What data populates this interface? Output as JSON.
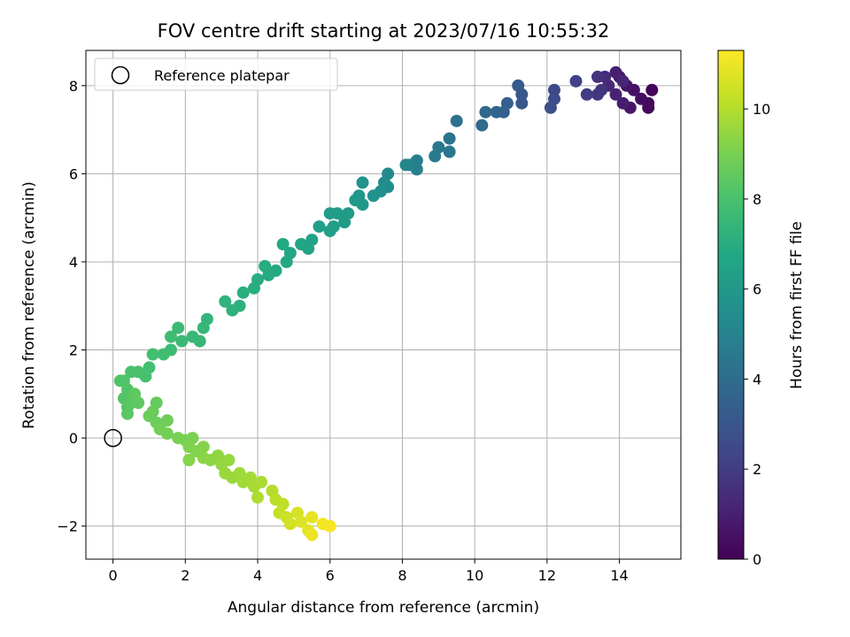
{
  "chart_data": {
    "type": "scatter",
    "title": "FOV centre drift starting at 2023/07/16 10:55:32",
    "xlabel": "Angular distance from reference (arcmin)",
    "ylabel": "Rotation from reference (arcmin)",
    "xlim": [
      -0.75,
      15.7
    ],
    "ylim": [
      -2.75,
      8.8
    ],
    "xticks": [
      0,
      2,
      4,
      6,
      8,
      10,
      12,
      14
    ],
    "yticks": [
      -2,
      0,
      2,
      4,
      6,
      8
    ],
    "xtick_labels": [
      "0",
      "2",
      "4",
      "6",
      "8",
      "10",
      "12",
      "14"
    ],
    "ytick_labels": [
      "−2",
      "0",
      "2",
      "4",
      "6",
      "8"
    ],
    "grid": true,
    "legend": {
      "placement": "top-left",
      "entries": [
        {
          "label": "Reference platepar",
          "marker": "open-circle"
        }
      ]
    },
    "reference_point": {
      "x": 0,
      "y": 0
    },
    "colorbar": {
      "label": "Hours from first FF file",
      "colormap": "viridis",
      "range": [
        0,
        11.3
      ],
      "ticks": [
        0,
        2,
        4,
        6,
        8,
        10
      ],
      "tick_labels": [
        "0",
        "2",
        "4",
        "6",
        "8",
        "10"
      ]
    },
    "series": [
      {
        "points": [
          {
            "x": 14.9,
            "y": 7.9,
            "t": 0.1
          },
          {
            "x": 14.8,
            "y": 7.5,
            "t": 0.2
          },
          {
            "x": 14.8,
            "y": 7.6,
            "t": 0.3
          },
          {
            "x": 14.6,
            "y": 7.7,
            "t": 0.4
          },
          {
            "x": 14.4,
            "y": 7.9,
            "t": 0.5
          },
          {
            "x": 14.2,
            "y": 8.0,
            "t": 0.6
          },
          {
            "x": 14.3,
            "y": 7.5,
            "t": 0.7
          },
          {
            "x": 14.0,
            "y": 8.2,
            "t": 0.8
          },
          {
            "x": 14.1,
            "y": 7.6,
            "t": 0.9
          },
          {
            "x": 13.9,
            "y": 8.3,
            "t": 1.0
          },
          {
            "x": 13.9,
            "y": 7.8,
            "t": 1.1
          },
          {
            "x": 14.1,
            "y": 8.1,
            "t": 1.2
          },
          {
            "x": 13.7,
            "y": 8.0,
            "t": 1.3
          },
          {
            "x": 13.6,
            "y": 8.2,
            "t": 1.4
          },
          {
            "x": 13.4,
            "y": 8.2,
            "t": 1.6
          },
          {
            "x": 13.5,
            "y": 7.9,
            "t": 1.7
          },
          {
            "x": 13.4,
            "y": 7.8,
            "t": 1.8
          },
          {
            "x": 13.1,
            "y": 7.8,
            "t": 2.0
          },
          {
            "x": 12.8,
            "y": 8.1,
            "t": 2.2
          },
          {
            "x": 12.2,
            "y": 7.9,
            "t": 2.5
          },
          {
            "x": 12.2,
            "y": 7.7,
            "t": 2.6
          },
          {
            "x": 12.1,
            "y": 7.5,
            "t": 2.7
          },
          {
            "x": 11.3,
            "y": 7.8,
            "t": 3.0
          },
          {
            "x": 11.3,
            "y": 7.6,
            "t": 3.1
          },
          {
            "x": 11.2,
            "y": 8.0,
            "t": 3.2
          },
          {
            "x": 10.9,
            "y": 7.6,
            "t": 3.4
          },
          {
            "x": 10.8,
            "y": 7.4,
            "t": 3.5
          },
          {
            "x": 10.6,
            "y": 7.4,
            "t": 3.6
          },
          {
            "x": 10.3,
            "y": 7.4,
            "t": 3.8
          },
          {
            "x": 10.2,
            "y": 7.1,
            "t": 3.9
          },
          {
            "x": 9.5,
            "y": 7.2,
            "t": 4.2
          },
          {
            "x": 9.3,
            "y": 6.8,
            "t": 4.3
          },
          {
            "x": 9.3,
            "y": 6.5,
            "t": 4.4
          },
          {
            "x": 9.0,
            "y": 6.6,
            "t": 4.5
          },
          {
            "x": 8.9,
            "y": 6.4,
            "t": 4.6
          },
          {
            "x": 8.4,
            "y": 6.3,
            "t": 4.8
          },
          {
            "x": 8.4,
            "y": 6.1,
            "t": 4.9
          },
          {
            "x": 8.2,
            "y": 6.2,
            "t": 5.0
          },
          {
            "x": 8.1,
            "y": 6.2,
            "t": 5.1
          },
          {
            "x": 7.6,
            "y": 6.0,
            "t": 5.3
          },
          {
            "x": 7.5,
            "y": 5.8,
            "t": 5.4
          },
          {
            "x": 7.6,
            "y": 5.7,
            "t": 5.5
          },
          {
            "x": 7.4,
            "y": 5.6,
            "t": 5.6
          },
          {
            "x": 7.2,
            "y": 5.5,
            "t": 5.7
          },
          {
            "x": 6.9,
            "y": 5.8,
            "t": 5.8
          },
          {
            "x": 6.8,
            "y": 5.5,
            "t": 5.9
          },
          {
            "x": 6.9,
            "y": 5.3,
            "t": 6.0
          },
          {
            "x": 6.7,
            "y": 5.4,
            "t": 6.05
          },
          {
            "x": 6.5,
            "y": 5.1,
            "t": 6.1
          },
          {
            "x": 6.4,
            "y": 4.9,
            "t": 6.15
          },
          {
            "x": 6.2,
            "y": 5.1,
            "t": 6.2
          },
          {
            "x": 6.0,
            "y": 5.1,
            "t": 6.25
          },
          {
            "x": 6.1,
            "y": 4.8,
            "t": 6.3
          },
          {
            "x": 6.0,
            "y": 4.7,
            "t": 6.35
          },
          {
            "x": 5.7,
            "y": 4.8,
            "t": 6.4
          },
          {
            "x": 5.5,
            "y": 4.5,
            "t": 6.5
          },
          {
            "x": 5.4,
            "y": 4.3,
            "t": 6.55
          },
          {
            "x": 5.2,
            "y": 4.4,
            "t": 6.6
          },
          {
            "x": 4.9,
            "y": 4.2,
            "t": 6.7
          },
          {
            "x": 4.8,
            "y": 4.0,
            "t": 6.75
          },
          {
            "x": 4.7,
            "y": 4.4,
            "t": 6.8
          },
          {
            "x": 4.5,
            "y": 3.8,
            "t": 6.85
          },
          {
            "x": 4.3,
            "y": 3.7,
            "t": 6.9
          },
          {
            "x": 4.2,
            "y": 3.9,
            "t": 6.95
          },
          {
            "x": 4.0,
            "y": 3.6,
            "t": 7.0
          },
          {
            "x": 3.9,
            "y": 3.4,
            "t": 7.05
          },
          {
            "x": 3.6,
            "y": 3.3,
            "t": 7.1
          },
          {
            "x": 3.5,
            "y": 3.0,
            "t": 7.15
          },
          {
            "x": 3.3,
            "y": 2.9,
            "t": 7.2
          },
          {
            "x": 3.1,
            "y": 3.1,
            "t": 7.25
          },
          {
            "x": 2.6,
            "y": 2.7,
            "t": 7.4
          },
          {
            "x": 2.5,
            "y": 2.5,
            "t": 7.45
          },
          {
            "x": 2.4,
            "y": 2.2,
            "t": 7.5
          },
          {
            "x": 2.2,
            "y": 2.3,
            "t": 7.55
          },
          {
            "x": 1.9,
            "y": 2.2,
            "t": 7.6
          },
          {
            "x": 1.8,
            "y": 2.5,
            "t": 7.65
          },
          {
            "x": 1.6,
            "y": 2.0,
            "t": 7.7
          },
          {
            "x": 1.6,
            "y": 2.3,
            "t": 7.75
          },
          {
            "x": 1.4,
            "y": 1.9,
            "t": 7.8
          },
          {
            "x": 1.1,
            "y": 1.9,
            "t": 7.85
          },
          {
            "x": 1.0,
            "y": 1.6,
            "t": 7.9
          },
          {
            "x": 0.9,
            "y": 1.4,
            "t": 7.95
          },
          {
            "x": 0.7,
            "y": 1.5,
            "t": 8.0
          },
          {
            "x": 0.5,
            "y": 1.5,
            "t": 8.05
          },
          {
            "x": 0.3,
            "y": 1.3,
            "t": 8.1
          },
          {
            "x": 0.2,
            "y": 1.3,
            "t": 8.15
          },
          {
            "x": 0.4,
            "y": 1.1,
            "t": 8.2
          },
          {
            "x": 0.3,
            "y": 0.9,
            "t": 8.25
          },
          {
            "x": 0.4,
            "y": 0.7,
            "t": 8.3
          },
          {
            "x": 0.5,
            "y": 0.8,
            "t": 8.35
          },
          {
            "x": 0.4,
            "y": 0.55,
            "t": 8.4
          },
          {
            "x": 0.6,
            "y": 1.0,
            "t": 8.45
          },
          {
            "x": 0.7,
            "y": 0.8,
            "t": 8.5
          },
          {
            "x": 1.2,
            "y": 0.8,
            "t": 8.6
          },
          {
            "x": 1.1,
            "y": 0.6,
            "t": 8.65
          },
          {
            "x": 1.0,
            "y": 0.5,
            "t": 8.7
          },
          {
            "x": 1.2,
            "y": 0.35,
            "t": 8.75
          },
          {
            "x": 1.5,
            "y": 0.4,
            "t": 8.8
          },
          {
            "x": 1.3,
            "y": 0.2,
            "t": 8.85
          },
          {
            "x": 1.5,
            "y": 0.1,
            "t": 8.9
          },
          {
            "x": 1.8,
            "y": 0.0,
            "t": 8.95
          },
          {
            "x": 2.0,
            "y": -0.05,
            "t": 9.0
          },
          {
            "x": 2.2,
            "y": 0.0,
            "t": 9.05
          },
          {
            "x": 2.1,
            "y": -0.2,
            "t": 9.1
          },
          {
            "x": 2.3,
            "y": -0.3,
            "t": 9.15
          },
          {
            "x": 2.5,
            "y": -0.2,
            "t": 9.2
          },
          {
            "x": 2.1,
            "y": -0.5,
            "t": 9.25
          },
          {
            "x": 2.5,
            "y": -0.45,
            "t": 9.3
          },
          {
            "x": 2.7,
            "y": -0.5,
            "t": 9.35
          },
          {
            "x": 2.9,
            "y": -0.4,
            "t": 9.4
          },
          {
            "x": 3.0,
            "y": -0.6,
            "t": 9.45
          },
          {
            "x": 3.2,
            "y": -0.5,
            "t": 9.5
          },
          {
            "x": 3.1,
            "y": -0.8,
            "t": 9.55
          },
          {
            "x": 3.3,
            "y": -0.9,
            "t": 9.6
          },
          {
            "x": 3.5,
            "y": -0.8,
            "t": 9.65
          },
          {
            "x": 3.6,
            "y": -1.0,
            "t": 9.7
          },
          {
            "x": 3.8,
            "y": -0.9,
            "t": 9.75
          },
          {
            "x": 3.9,
            "y": -1.1,
            "t": 9.8
          },
          {
            "x": 4.1,
            "y": -1.0,
            "t": 9.85
          },
          {
            "x": 4.0,
            "y": -1.35,
            "t": 9.9
          },
          {
            "x": 4.4,
            "y": -1.2,
            "t": 10.0
          },
          {
            "x": 4.5,
            "y": -1.4,
            "t": 10.1
          },
          {
            "x": 4.7,
            "y": -1.5,
            "t": 10.2
          },
          {
            "x": 4.6,
            "y": -1.7,
            "t": 10.3
          },
          {
            "x": 4.8,
            "y": -1.8,
            "t": 10.4
          },
          {
            "x": 4.9,
            "y": -1.95,
            "t": 10.5
          },
          {
            "x": 5.1,
            "y": -1.7,
            "t": 10.6
          },
          {
            "x": 5.2,
            "y": -1.9,
            "t": 10.7
          },
          {
            "x": 5.4,
            "y": -2.1,
            "t": 10.8
          },
          {
            "x": 5.5,
            "y": -1.8,
            "t": 10.9
          },
          {
            "x": 5.5,
            "y": -2.2,
            "t": 11.0
          },
          {
            "x": 5.8,
            "y": -1.95,
            "t": 11.1
          },
          {
            "x": 6.0,
            "y": -2.0,
            "t": 11.2
          }
        ]
      }
    ]
  }
}
